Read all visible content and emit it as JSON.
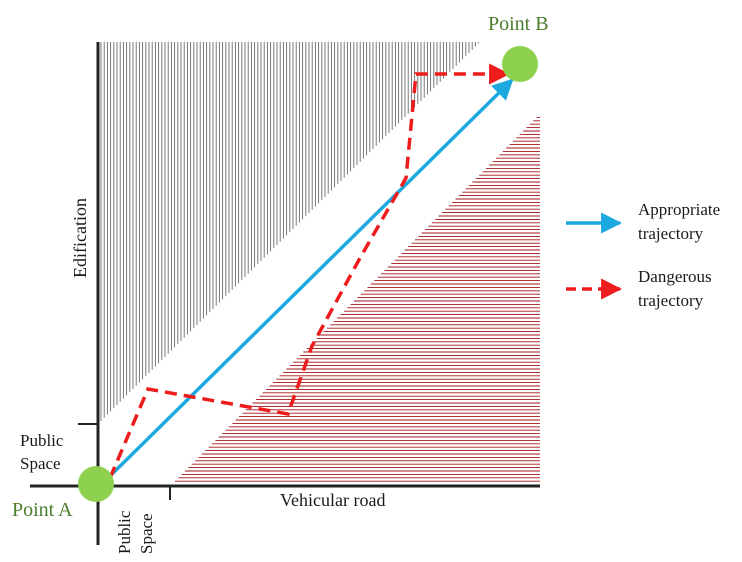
{
  "labels": {
    "point_a": "Point A",
    "point_b": "Point B",
    "edification": "Edification",
    "public_space_left_line1": "Public",
    "public_space_left_line2": "Space",
    "public_space_bottom_line1": "Public",
    "public_space_bottom_line2": "Space",
    "vehicular_road": "Vehicular road"
  },
  "legend": {
    "appropriate_line1": "Appropriate",
    "appropriate_line2": "trajectory",
    "dangerous_line1": "Dangerous",
    "dangerous_line2": "trajectory"
  },
  "colors": {
    "point_fill": "#8dd14f",
    "point_label": "#4a7d2c",
    "appropriate": "#1ca9e0",
    "dangerous": "#ee1c1c",
    "edification_hatch": "#6b6b6b",
    "road_hatch": "#a31515",
    "axis": "#222222",
    "text": "#1a1a1a"
  }
}
